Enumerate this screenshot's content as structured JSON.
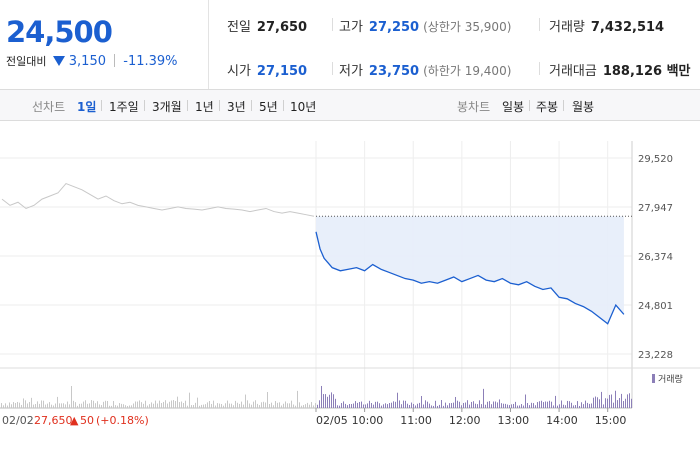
{
  "quote": {
    "price": "24,500",
    "change_label": "전일대비",
    "change": "3,150",
    "change_pct": "-11.39%"
  },
  "stats": {
    "prev_close": {
      "label": "전일",
      "value": "27,650"
    },
    "high": {
      "label": "고가",
      "value": "27,250",
      "sub": "(상한가 35,900)"
    },
    "volume": {
      "label": "거래량",
      "value": "7,432,514"
    },
    "open": {
      "label": "시가",
      "value": "27,150"
    },
    "low": {
      "label": "저가",
      "value": "23,750",
      "sub": "(하한가 19,400)"
    },
    "amount": {
      "label": "거래대금",
      "value": "188,126 백만"
    }
  },
  "tabs": {
    "line_label": "선차트",
    "line_items": [
      "1일",
      "1주일",
      "3개월",
      "1년",
      "3년",
      "5년",
      "10년"
    ],
    "active_line": 0,
    "candle_label": "봉차트",
    "candle_items": [
      "일봉",
      "주봉",
      "월봉"
    ]
  },
  "colors": {
    "accent": "#1b5fd0",
    "up": "#e0301e",
    "prev_day_line": "#c8c8c8",
    "area_fill": "#e6edf9",
    "volume_bar": "#8c7fb8",
    "volume_bar_prev": "#c8c8c8"
  },
  "chart_data": {
    "type": "line",
    "y_ticks": [
      "29,520",
      "27,947",
      "26,374",
      "24,801",
      "23,228"
    ],
    "ylim": [
      23228,
      29520
    ],
    "reference_price": 27650,
    "x_labels": [
      "02/02",
      "02/05",
      "10:00",
      "11:00",
      "12:00",
      "13:00",
      "14:00",
      "15:00"
    ],
    "prev_day_summary": {
      "date": "02/02",
      "close": "27,650",
      "change": "50",
      "change_pct": "(+0.18%)"
    },
    "volume_legend": "거래량",
    "series": [
      {
        "date": "02/02",
        "values": [
          28200,
          28000,
          28100,
          27900,
          28000,
          28200,
          28300,
          28400,
          28700,
          28600,
          28500,
          28350,
          28200,
          28300,
          28150,
          28050,
          28100,
          28000,
          27950,
          27900,
          27850,
          27900,
          27950,
          27900,
          27880,
          27850,
          27900,
          27950,
          27900,
          27880,
          27850,
          27800,
          27850,
          27900,
          27800,
          27750,
          27800,
          27750,
          27700,
          27650
        ]
      },
      {
        "date": "02/05",
        "x": [
          "09:00",
          "09:05",
          "09:10",
          "09:15",
          "09:20",
          "09:30",
          "09:40",
          "09:50",
          "10:00",
          "10:10",
          "10:20",
          "10:30",
          "10:40",
          "10:50",
          "11:00",
          "11:10",
          "11:20",
          "11:30",
          "11:40",
          "11:50",
          "12:00",
          "12:10",
          "12:20",
          "12:30",
          "12:40",
          "12:50",
          "13:00",
          "13:10",
          "13:20",
          "13:30",
          "13:40",
          "13:50",
          "14:00",
          "14:10",
          "14:20",
          "14:30",
          "14:40",
          "14:50",
          "15:00",
          "15:10",
          "15:20"
        ],
        "values": [
          27150,
          26600,
          26300,
          26150,
          26000,
          25900,
          25950,
          26000,
          25900,
          26100,
          25950,
          25850,
          25750,
          25650,
          25600,
          25500,
          25550,
          25500,
          25600,
          25700,
          25550,
          25650,
          25750,
          25600,
          25550,
          25650,
          25500,
          25450,
          25550,
          25400,
          25300,
          25350,
          25050,
          25000,
          24850,
          24750,
          24600,
          24400,
          24200,
          24800,
          24500
        ]
      }
    ]
  }
}
